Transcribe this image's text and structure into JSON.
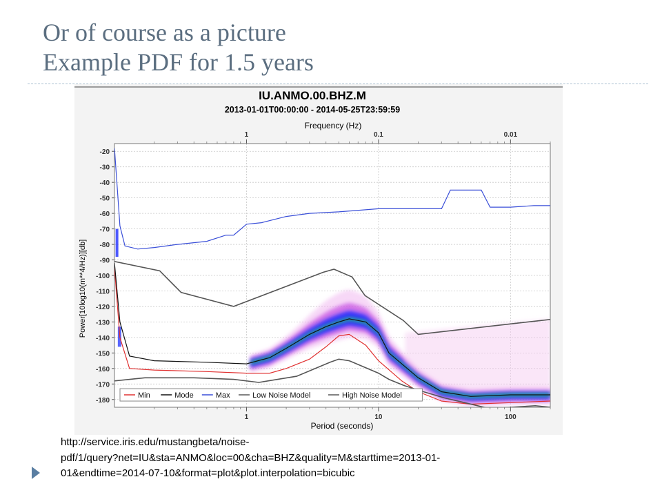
{
  "slide": {
    "title_line1": "Or of course as a picture",
    "title_line2": "Example PDF for 1.5 years",
    "url_line1": "http://service.iris.edu/mustangbeta/noise-",
    "url_line2": "pdf/1/query?net=IU&sta=ANMO&loc=00&cha=BHZ&quality=M&starttime=2013-01-",
    "url_line3": "01&endtime=2014-07-10&format=plot&plot.interpolation=bicubic"
  },
  "chart_data": {
    "type": "line",
    "title": "IU.ANMO.00.BHZ.M",
    "subtitle": "2013-01-01T00:00:00 - 2014-05-25T23:59:59",
    "xlabel": "Period (seconds)",
    "x2label": "Frequency (Hz)",
    "ylabel": "Power[10log10(m**4/Hz)][db]",
    "x_scale": "log",
    "xlim": [
      0.1,
      200
    ],
    "ylim": [
      -185,
      -15
    ],
    "x_ticks": [
      1,
      10,
      100
    ],
    "x_tick_labels": [
      "1",
      "10",
      "100"
    ],
    "x2_ticks": [
      1,
      10,
      100
    ],
    "x2_tick_labels": [
      "1",
      "0.1",
      "0.01"
    ],
    "y_ticks": [
      -20,
      -30,
      -40,
      -50,
      -60,
      -70,
      -80,
      -90,
      -100,
      -110,
      -120,
      -130,
      -140,
      -150,
      -160,
      -170,
      -180
    ],
    "y_tick_labels": [
      "-20",
      "-30",
      "-40",
      "-50",
      "-60",
      "-70",
      "-80",
      "-90",
      "-100",
      "-110",
      "-120",
      "-130",
      "-140",
      "-150",
      "-160",
      "-170",
      "-180"
    ],
    "grid": true,
    "legend_position": "bottom-left",
    "background_density": "PDF probability shading (magenta to blue to green)",
    "series": [
      {
        "name": "Min",
        "color": "#e03030",
        "x": [
          0.1,
          0.11,
          0.13,
          0.2,
          0.5,
          1,
          1.5,
          2,
          3,
          4,
          5,
          6,
          8,
          10,
          15,
          20,
          30,
          50,
          100,
          200
        ],
        "y": [
          -95,
          -140,
          -160,
          -161,
          -162,
          -163,
          -163,
          -160,
          -154,
          -146,
          -139,
          -138,
          -145,
          -155,
          -168,
          -175,
          -181,
          -183,
          -182,
          -181
        ]
      },
      {
        "name": "Mode",
        "color": "#111111",
        "x": [
          0.1,
          0.11,
          0.13,
          0.2,
          0.5,
          1,
          1.5,
          2,
          3,
          4,
          5,
          6,
          8,
          10,
          12,
          15,
          20,
          30,
          50,
          100,
          200
        ],
        "y": [
          -92,
          -130,
          -152,
          -155,
          -156,
          -157,
          -153,
          -147,
          -138,
          -133,
          -130,
          -128,
          -130,
          -137,
          -150,
          -157,
          -166,
          -175,
          -178,
          -177,
          -177
        ]
      },
      {
        "name": "Max",
        "color": "#3a4fd8",
        "x": [
          0.1,
          0.11,
          0.12,
          0.15,
          0.2,
          0.3,
          0.5,
          0.7,
          0.8,
          1,
          1.3,
          2,
          3,
          5,
          10,
          20,
          30,
          35,
          60,
          70,
          100,
          150,
          200
        ],
        "y": [
          -18,
          -68,
          -81,
          -83,
          -82,
          -80,
          -78,
          -74,
          -74,
          -67,
          -66,
          -62,
          -60,
          -59,
          -57,
          -57,
          -57,
          -45,
          -45,
          -56,
          -56,
          -55,
          -55
        ]
      },
      {
        "name": "Low Noise Model",
        "color": "#555555",
        "x": [
          0.1,
          0.17,
          0.4,
          0.8,
          1.24,
          2.4,
          4.3,
          5,
          6,
          10,
          12,
          15.6,
          21.9,
          31.6,
          45,
          70,
          101,
          154,
          200
        ],
        "y": [
          -168,
          -166,
          -166,
          -167,
          -169,
          -165,
          -156,
          -154,
          -155,
          -163,
          -167,
          -171,
          -175,
          -179,
          -182,
          -186,
          -185,
          -184,
          -185
        ]
      },
      {
        "name": "High Noise Model",
        "color": "#555555",
        "x": [
          0.1,
          0.22,
          0.32,
          0.8,
          3.8,
          4.6,
          6.3,
          7.9,
          15.4,
          20,
          354.8
        ],
        "y": [
          -91,
          -97,
          -111,
          -120,
          -98,
          -96,
          -101,
          -113,
          -129,
          -138,
          -126
        ]
      }
    ]
  }
}
